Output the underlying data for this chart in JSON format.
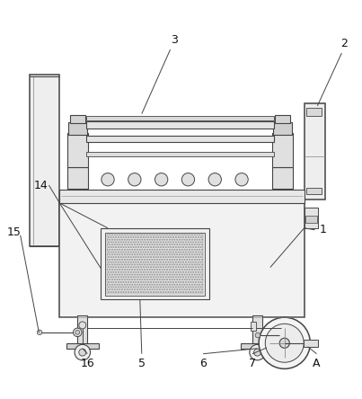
{
  "fig_width": 4.03,
  "fig_height": 4.44,
  "dpi": 100,
  "bg_color": "#ffffff",
  "lc": "#444444",
  "lc2": "#888888",
  "fc_body": "#f0f0f0",
  "fc_dark": "#d8d8d8",
  "fc_med": "#e4e4e4",
  "fc_light": "#f8f8f8",
  "label_fs": 9,
  "label_color": "#111111"
}
